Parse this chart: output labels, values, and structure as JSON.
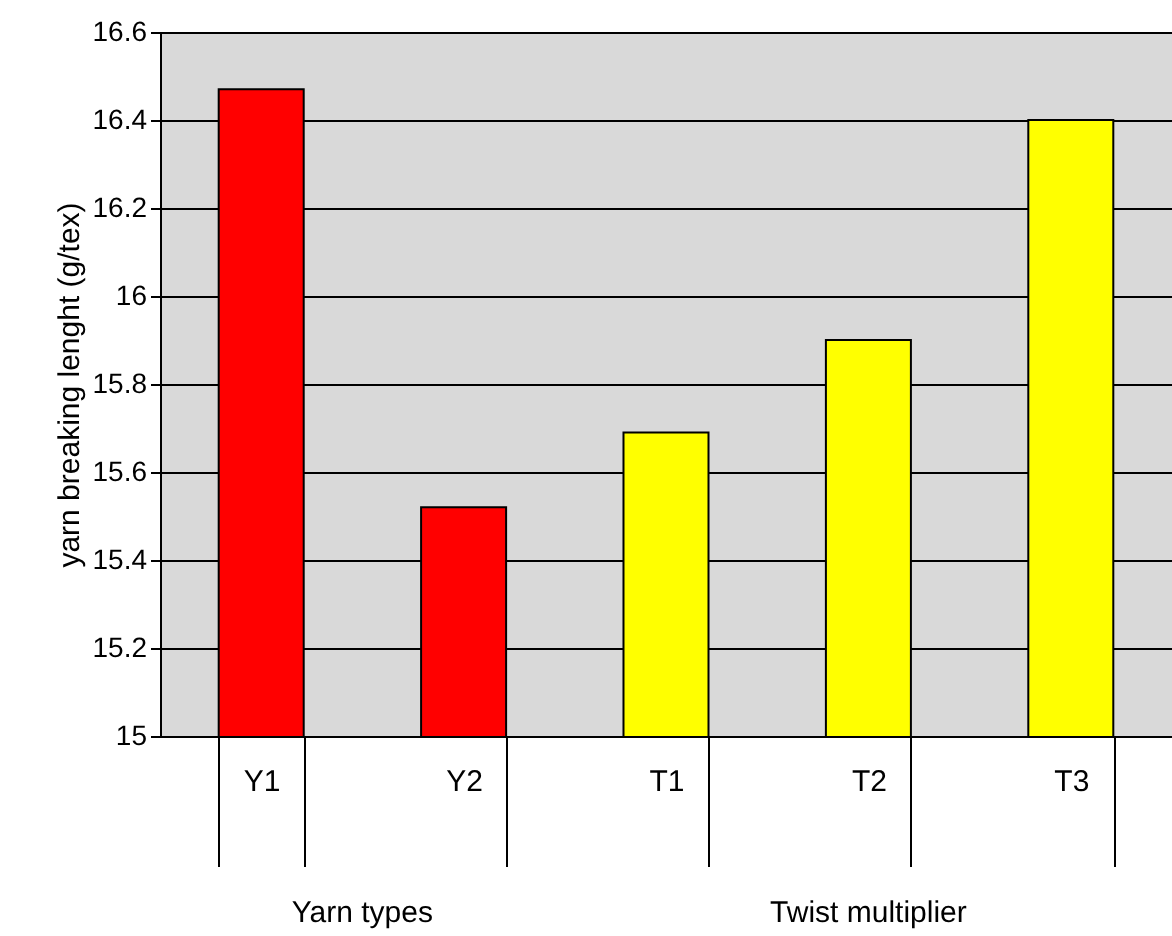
{
  "chart_data": {
    "type": "bar",
    "ylabel": "yarn breaking lenght (g/tex)",
    "categories": [
      "Y1",
      "Y2",
      "T1",
      "T2",
      "T3"
    ],
    "values": [
      16.47,
      15.52,
      15.69,
      15.9,
      16.4
    ],
    "colors": [
      "#ff0000",
      "#ff0000",
      "#ffff00",
      "#ffff00",
      "#ffff00"
    ],
    "ylim": [
      15,
      16.6
    ],
    "yticks": [
      15,
      15.2,
      15.4,
      15.6,
      15.8,
      16,
      16.2,
      16.4,
      16.6
    ],
    "grid": "y",
    "annotations": [
      "Yarn types",
      "Twist multiplier"
    ]
  }
}
